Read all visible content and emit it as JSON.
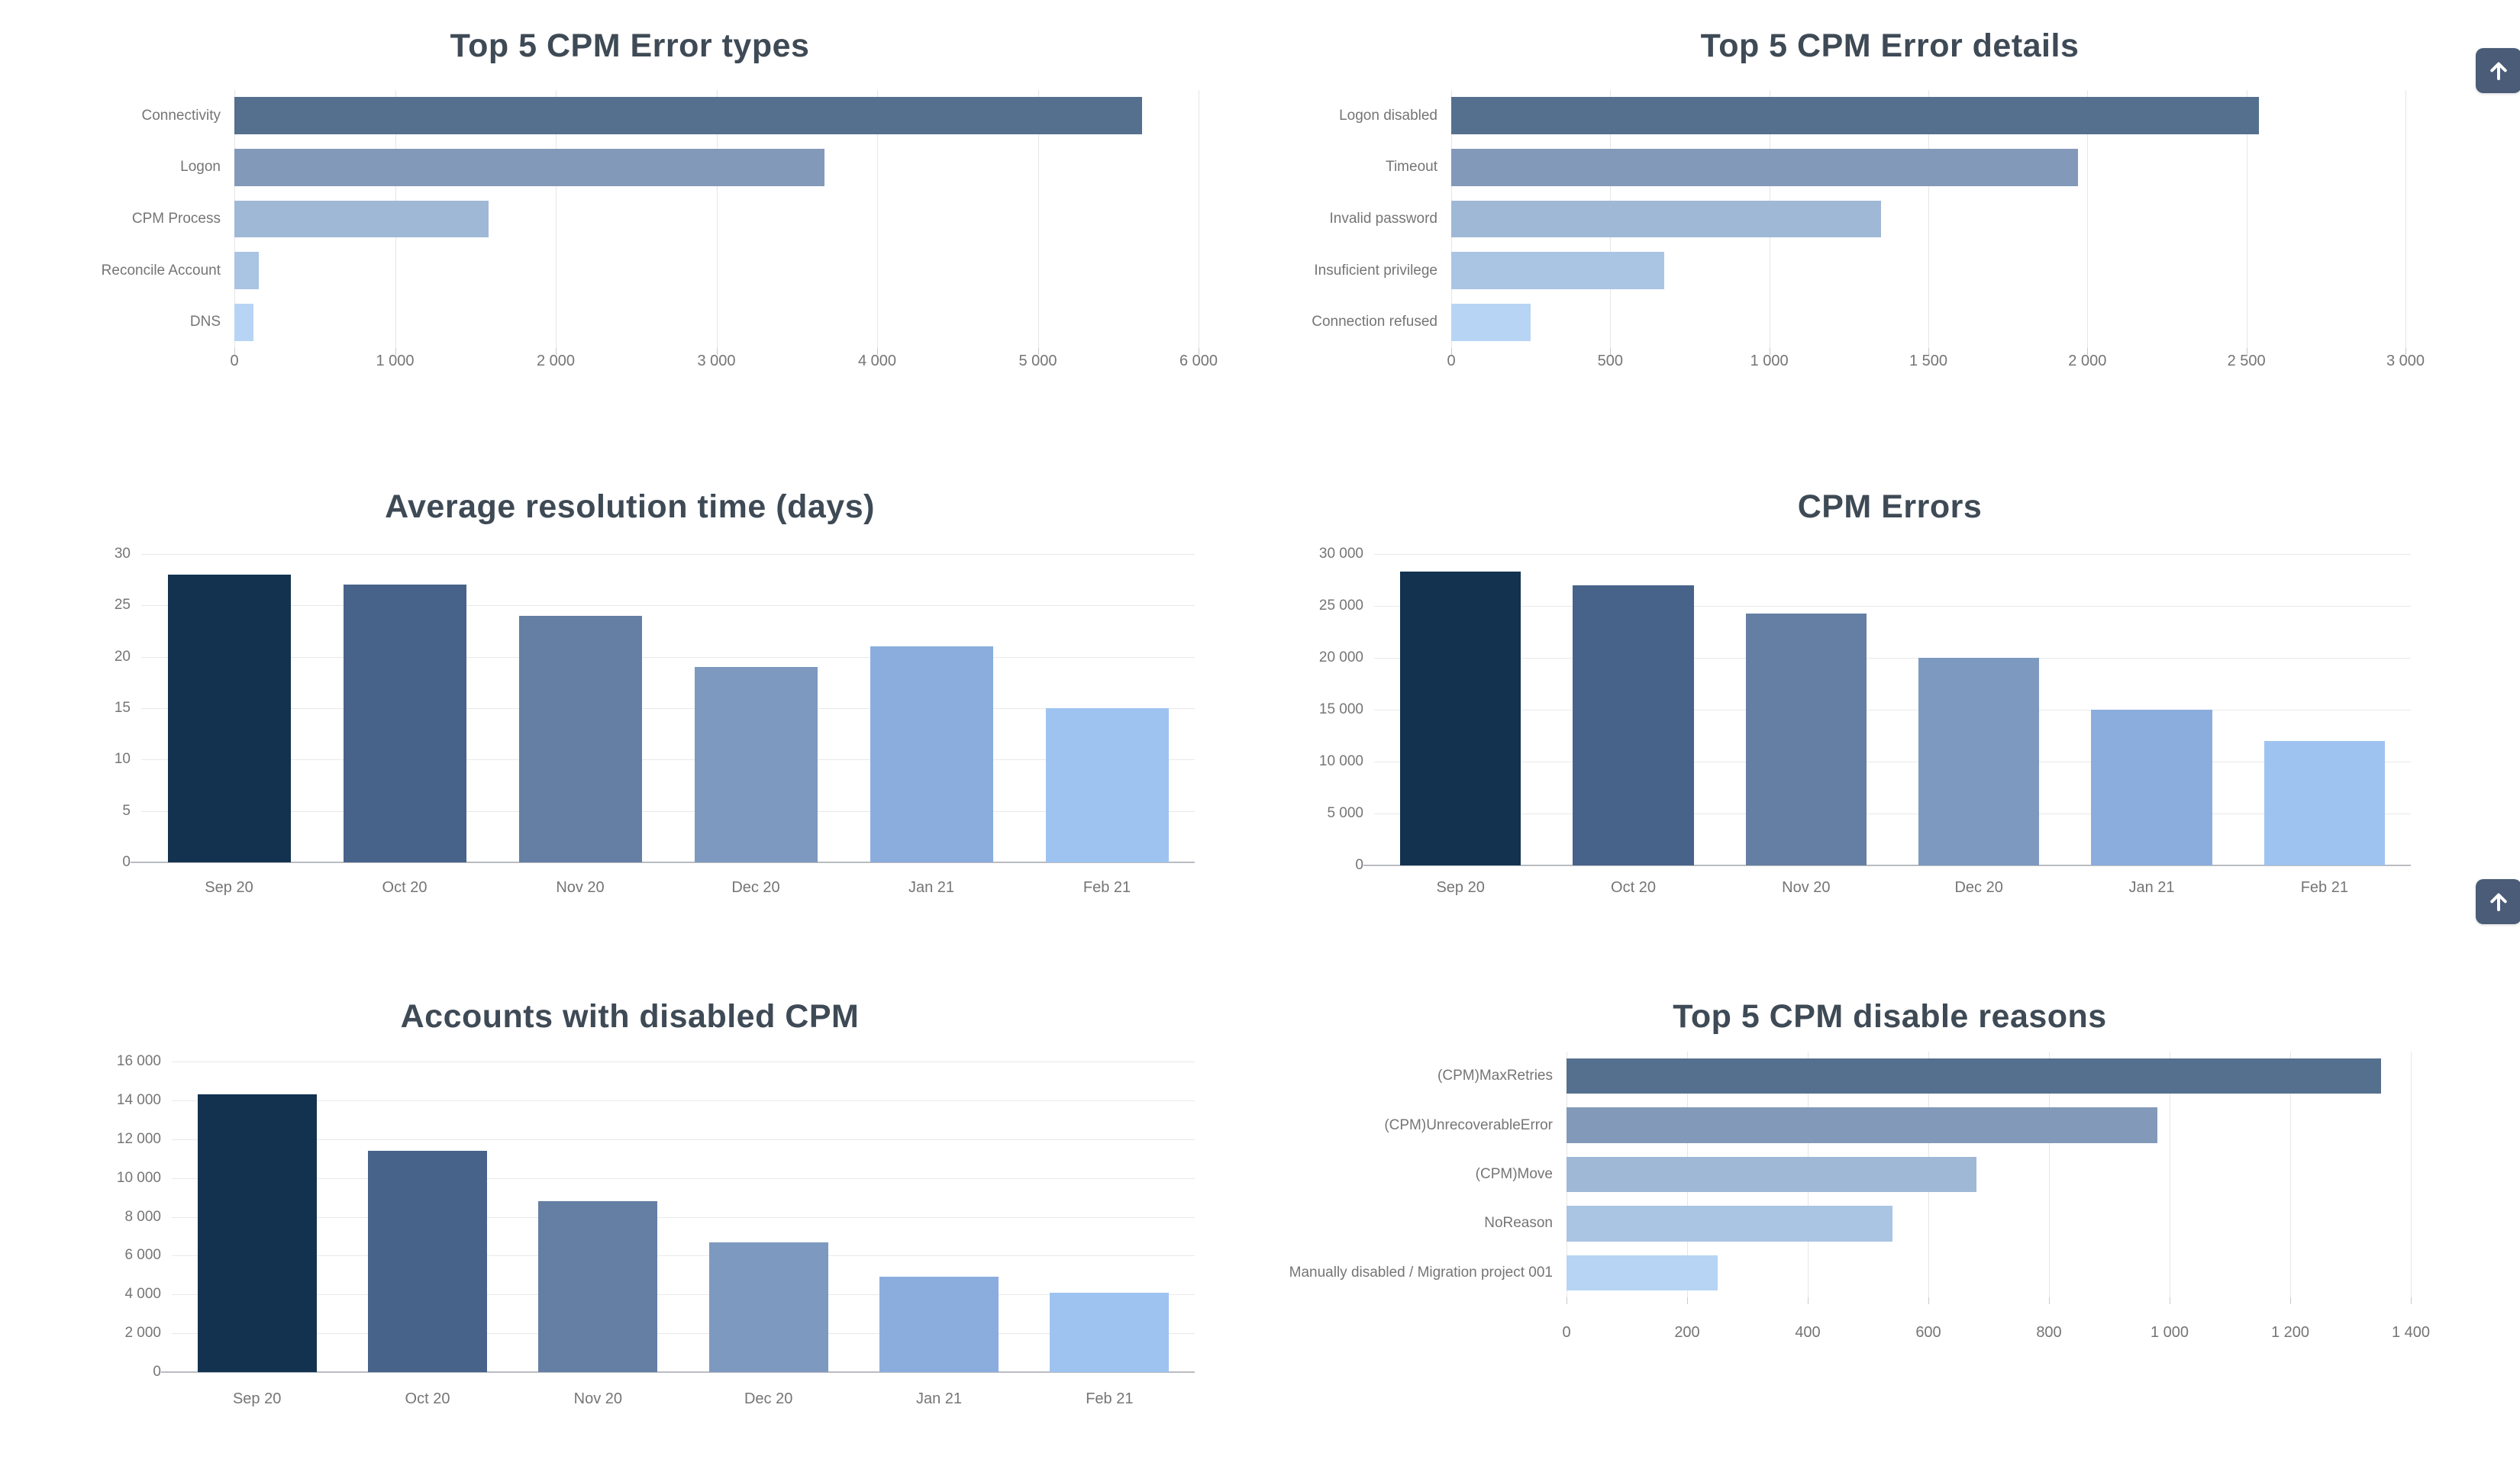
{
  "theme": {
    "background": "#ffffff",
    "title_color": "#3e4a55",
    "axis_label_color": "#757575",
    "gridline_color": "#e6e6e6",
    "floating_button_color": "#4a5c77"
  },
  "floating_buttons": [
    {
      "name": "scroll-to-top",
      "icon": "arrow-up"
    },
    {
      "name": "scroll-to-top",
      "icon": "arrow-up"
    }
  ],
  "chart_data": [
    {
      "type": "bar",
      "orientation": "horizontal",
      "title": "Top 5 CPM Error types",
      "categories": [
        "Connectivity",
        "Logon",
        "CPM Process",
        "Reconcile Account",
        "DNS"
      ],
      "values": [
        5650,
        3670,
        1580,
        150,
        120
      ],
      "xlabel": "",
      "ylabel": "",
      "xlim": [
        0,
        6000
      ],
      "tick_values": [
        0,
        1000,
        2000,
        3000,
        4000,
        5000,
        6000
      ],
      "tick_labels": [
        "0",
        "1 000",
        "2 000",
        "3 000",
        "4 000",
        "5 000",
        "6 000"
      ],
      "colors": [
        "#54708e",
        "#8399ba",
        "#9fb8d6",
        "#aac4e4",
        "#b7d4f4"
      ],
      "grid": true,
      "legend": false
    },
    {
      "type": "bar",
      "orientation": "horizontal",
      "title": "Top 5 CPM Error details",
      "categories": [
        "Logon disabled",
        "Timeout",
        "Invalid password",
        "Insuficient privilege",
        "Connection refused"
      ],
      "values": [
        2540,
        1970,
        1350,
        670,
        250
      ],
      "xlabel": "",
      "ylabel": "",
      "xlim": [
        0,
        3000
      ],
      "tick_values": [
        0,
        500,
        1000,
        1500,
        2000,
        2500,
        3000
      ],
      "tick_labels": [
        "0",
        "500",
        "1 000",
        "1 500",
        "2 000",
        "2 500",
        "3 000"
      ],
      "colors": [
        "#54708e",
        "#8399ba",
        "#9fb8d6",
        "#aac4e4",
        "#b7d4f4"
      ],
      "grid": true,
      "legend": false
    },
    {
      "type": "bar",
      "orientation": "vertical",
      "title": "Average resolution time (days)",
      "categories": [
        "Sep 20",
        "Oct 20",
        "Nov 20",
        "Dec 20",
        "Jan 21",
        "Feb 21"
      ],
      "values": [
        28,
        27,
        24,
        19,
        21,
        15
      ],
      "xlabel": "",
      "ylabel": "",
      "ylim": [
        0,
        30
      ],
      "tick_values": [
        0,
        5,
        10,
        15,
        20,
        25,
        30
      ],
      "tick_labels": [
        "0",
        "5",
        "10",
        "15",
        "20",
        "25",
        "30"
      ],
      "colors": [
        "#123250",
        "#47638a",
        "#647fa3",
        "#7d99bf",
        "#8badde",
        "#9ec3f0"
      ],
      "grid": true,
      "legend": false
    },
    {
      "type": "bar",
      "orientation": "vertical",
      "title": "CPM Errors",
      "categories": [
        "Sep 20",
        "Oct 20",
        "Nov 20",
        "Dec 20",
        "Jan 21",
        "Feb 21"
      ],
      "values": [
        28300,
        27000,
        24300,
        20000,
        15000,
        12000
      ],
      "xlabel": "",
      "ylabel": "",
      "ylim": [
        0,
        30000
      ],
      "tick_values": [
        0,
        5000,
        10000,
        15000,
        20000,
        25000,
        30000
      ],
      "tick_labels": [
        "0",
        "5 000",
        "10 000",
        "15 000",
        "20 000",
        "25 000",
        "30 000"
      ],
      "colors": [
        "#123250",
        "#47638a",
        "#647fa3",
        "#7d99bf",
        "#8badde",
        "#9ec3f0"
      ],
      "grid": true,
      "legend": false
    },
    {
      "type": "bar",
      "orientation": "vertical",
      "title": "Accounts with disabled CPM",
      "categories": [
        "Sep 20",
        "Oct 20",
        "Nov 20",
        "Dec 20",
        "Jan 21",
        "Feb 21"
      ],
      "values": [
        14300,
        11400,
        8800,
        6700,
        4900,
        4100
      ],
      "xlabel": "",
      "ylabel": "",
      "ylim": [
        0,
        16000
      ],
      "tick_values": [
        0,
        2000,
        4000,
        6000,
        8000,
        10000,
        12000,
        14000,
        16000
      ],
      "tick_labels": [
        "0",
        "2 000",
        "4 000",
        "6 000",
        "8 000",
        "10 000",
        "12 000",
        "14 000",
        "16 000"
      ],
      "colors": [
        "#123250",
        "#47638a",
        "#647fa3",
        "#7d99bf",
        "#8badde",
        "#9ec3f0"
      ],
      "grid": true,
      "legend": false
    },
    {
      "type": "bar",
      "orientation": "horizontal",
      "title": "Top 5 CPM disable reasons",
      "categories": [
        "(CPM)MaxRetries",
        "(CPM)UnrecoverableError",
        "(CPM)Move",
        "NoReason",
        "Manually disabled / Migration project 001"
      ],
      "values": [
        1350,
        980,
        680,
        540,
        250
      ],
      "xlabel": "",
      "ylabel": "",
      "xlim": [
        0,
        1400
      ],
      "tick_values": [
        0,
        200,
        400,
        600,
        800,
        1000,
        1200,
        1400
      ],
      "tick_labels": [
        "0",
        "200",
        "400",
        "600",
        "800",
        "1 000",
        "1 200",
        "1 400"
      ],
      "colors": [
        "#54708e",
        "#8399ba",
        "#9fb8d6",
        "#aac4e4",
        "#b7d4f4"
      ],
      "grid": true,
      "legend": false
    }
  ]
}
